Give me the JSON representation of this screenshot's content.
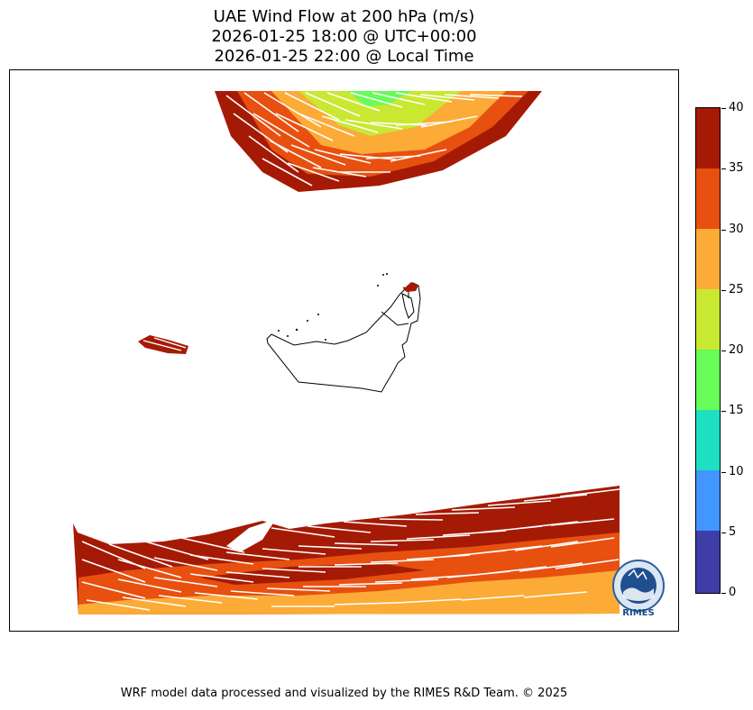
{
  "header": {
    "title_line1": "UAE Wind Flow at 200 hPa (m/s)",
    "title_line2": "2026-01-25 18:00 @ UTC+00:00",
    "title_line3": "2026-01-25 22:00 @ Local Time"
  },
  "colorbar": {
    "ticks": [
      "40",
      "35",
      "30",
      "25",
      "20",
      "15",
      "10",
      "5",
      "0"
    ],
    "colors": [
      "#a51a05",
      "#e8500f",
      "#fbab36",
      "#c9e832",
      "#67fc57",
      "#1ddfc2",
      "#4196ff",
      "#3f3ea6"
    ]
  },
  "logo": {
    "text": "RIMES"
  },
  "footer": {
    "credit": "WRF model data processed and visualized by the RIMES R&D Team. © 2025"
  }
}
